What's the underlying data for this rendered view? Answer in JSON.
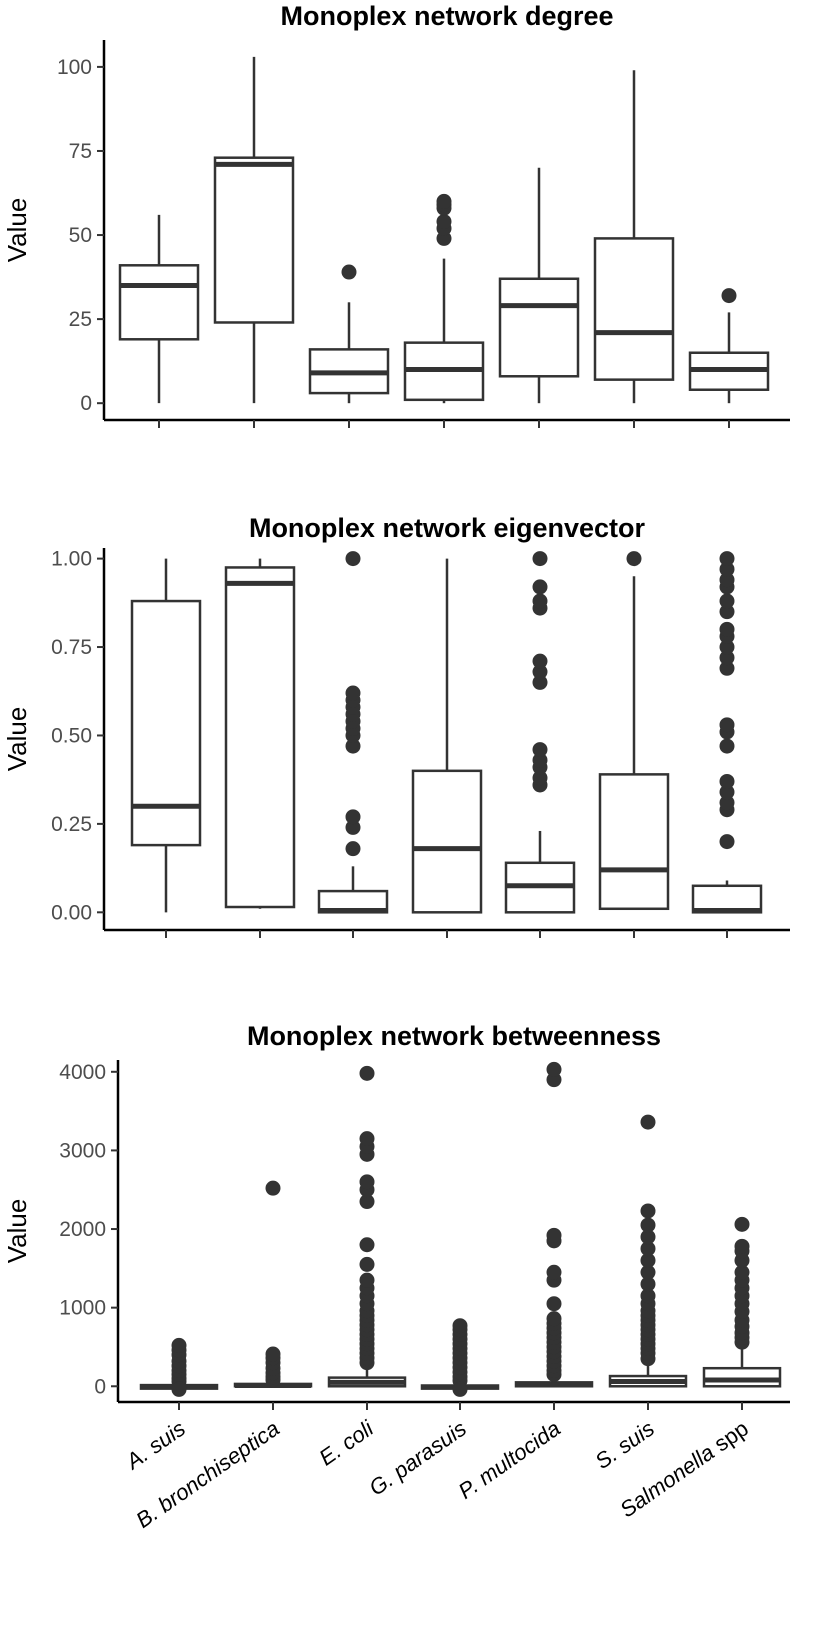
{
  "chart_data": [
    {
      "type": "box",
      "title": "Monoplex network degree",
      "ylabel": "Value",
      "ylim": [
        -5,
        108
      ],
      "yticks": [
        "0",
        "25",
        "50",
        "75",
        "100"
      ],
      "ytick_values": [
        0,
        25,
        50,
        75,
        100
      ],
      "categories": [
        "A. suis",
        "B. bronchiseptica",
        "E. coli",
        "G. parasuis",
        "P. multocida",
        "S. suis",
        "Salmonella spp"
      ],
      "boxes": [
        {
          "whisker_low": 0,
          "q1": 19,
          "median": 35,
          "q3": 41,
          "whisker_high": 56,
          "outliers": []
        },
        {
          "whisker_low": 0,
          "q1": 24,
          "median": 71,
          "q3": 73,
          "whisker_high": 103,
          "outliers": []
        },
        {
          "whisker_low": 0,
          "q1": 3,
          "median": 9,
          "q3": 16,
          "whisker_high": 30,
          "outliers": [
            39
          ]
        },
        {
          "whisker_low": 0,
          "q1": 1,
          "median": 10,
          "q3": 18,
          "whisker_high": 43,
          "outliers": [
            49,
            52,
            54,
            58,
            59,
            60
          ]
        },
        {
          "whisker_low": 0,
          "q1": 8,
          "median": 29,
          "q3": 37,
          "whisker_high": 70,
          "outliers": []
        },
        {
          "whisker_low": 0,
          "q1": 7,
          "median": 21,
          "q3": 49,
          "whisker_high": 99,
          "outliers": []
        },
        {
          "whisker_low": 0,
          "q1": 4,
          "median": 10,
          "q3": 15,
          "whisker_high": 27,
          "outliers": [
            32
          ]
        }
      ]
    },
    {
      "type": "box",
      "title": "Monoplex network eigenvector",
      "ylabel": "Value",
      "ylim": [
        -0.05,
        1.03
      ],
      "yticks": [
        "0.00",
        "0.25",
        "0.50",
        "0.75",
        "1.00"
      ],
      "ytick_values": [
        0,
        0.25,
        0.5,
        0.75,
        1.0
      ],
      "categories": [
        "A. suis",
        "B. bronchiseptica",
        "E. coli",
        "G. parasuis",
        "P. multocida",
        "S. suis",
        "Salmonella spp"
      ],
      "boxes": [
        {
          "whisker_low": 0,
          "q1": 0.19,
          "median": 0.3,
          "q3": 0.88,
          "whisker_high": 1.0,
          "outliers": []
        },
        {
          "whisker_low": 0.01,
          "q1": 0.015,
          "median": 0.93,
          "q3": 0.975,
          "whisker_high": 1.0,
          "outliers": []
        },
        {
          "whisker_low": 0,
          "q1": 0.0,
          "median": 0.005,
          "q3": 0.06,
          "whisker_high": 0.13,
          "outliers": [
            0.18,
            0.24,
            0.27,
            0.47,
            0.5,
            0.52,
            0.54,
            0.56,
            0.58,
            0.6,
            0.62,
            1.0
          ]
        },
        {
          "whisker_low": 0,
          "q1": 0.0,
          "median": 0.18,
          "q3": 0.4,
          "whisker_high": 1.0,
          "outliers": []
        },
        {
          "whisker_low": 0,
          "q1": 0.0,
          "median": 0.075,
          "q3": 0.14,
          "whisker_high": 0.23,
          "outliers": [
            0.36,
            0.38,
            0.41,
            0.43,
            0.46,
            0.65,
            0.68,
            0.71,
            0.86,
            0.88,
            0.92,
            1.0
          ]
        },
        {
          "whisker_low": 0.01,
          "q1": 0.01,
          "median": 0.12,
          "q3": 0.39,
          "whisker_high": 0.95,
          "outliers": [
            1.0
          ]
        },
        {
          "whisker_low": 0,
          "q1": 0.0,
          "median": 0.005,
          "q3": 0.075,
          "whisker_high": 0.09,
          "outliers": [
            0.2,
            0.29,
            0.31,
            0.34,
            0.37,
            0.47,
            0.51,
            0.53,
            0.69,
            0.72,
            0.75,
            0.78,
            0.8,
            0.85,
            0.88,
            0.92,
            0.94,
            0.97,
            1.0
          ]
        }
      ]
    },
    {
      "type": "box",
      "title": "Monoplex network betweenness",
      "ylabel": "Value",
      "ylim": [
        -200,
        4150
      ],
      "yticks": [
        "0",
        "1000",
        "2000",
        "3000",
        "4000"
      ],
      "ytick_values": [
        0,
        1000,
        2000,
        3000,
        4000
      ],
      "categories": [
        "A. suis",
        "B. bronchiseptica",
        "E. coli",
        "G. parasuis",
        "P. multocida",
        "S. suis",
        "Salmonella spp"
      ],
      "boxes": [
        {
          "whisker_low": -50,
          "q1": -30,
          "median": -5,
          "q3": 15,
          "whisker_high": 40,
          "outliers": [
            60,
            100,
            150,
            200,
            260,
            320,
            400,
            460,
            520,
            -40
          ]
        },
        {
          "whisker_low": 0,
          "q1": 0,
          "median": 10,
          "q3": 30,
          "whisker_high": 60,
          "outliers": [
            80,
            120,
            170,
            230,
            300,
            360,
            410,
            2520
          ]
        },
        {
          "whisker_low": 0,
          "q1": 0,
          "median": 50,
          "q3": 110,
          "whisker_high": 250,
          "outliers": [
            300,
            360,
            420,
            480,
            540,
            600,
            660,
            720,
            780,
            840,
            900,
            960,
            1050,
            1150,
            1250,
            1350,
            1550,
            1800,
            2350,
            2500,
            2600,
            2950,
            3050,
            3150,
            3980
          ]
        },
        {
          "whisker_low": -50,
          "q1": -30,
          "median": -10,
          "q3": 10,
          "whisker_high": 40,
          "outliers": [
            70,
            120,
            180,
            240,
            300,
            360,
            420,
            480,
            540,
            600,
            660,
            720,
            770,
            -40
          ]
        },
        {
          "whisker_low": 0,
          "q1": 0,
          "median": 20,
          "q3": 50,
          "whisker_high": 100,
          "outliers": [
            150,
            200,
            260,
            320,
            380,
            440,
            500,
            560,
            620,
            680,
            740,
            800,
            860,
            1050,
            1350,
            1450,
            1850,
            1920,
            3900,
            4030
          ]
        },
        {
          "whisker_low": 0,
          "q1": 0,
          "median": 60,
          "q3": 130,
          "whisker_high": 300,
          "outliers": [
            350,
            420,
            480,
            540,
            600,
            660,
            720,
            780,
            840,
            900,
            960,
            1050,
            1150,
            1300,
            1450,
            1600,
            1750,
            1900,
            2050,
            2230,
            3360
          ]
        },
        {
          "whisker_low": 0,
          "q1": 0,
          "median": 80,
          "q3": 230,
          "whisker_high": 500,
          "outliers": [
            560,
            620,
            680,
            760,
            840,
            950,
            1050,
            1150,
            1250,
            1350,
            1450,
            1600,
            1720,
            1780,
            2060
          ]
        }
      ]
    }
  ]
}
